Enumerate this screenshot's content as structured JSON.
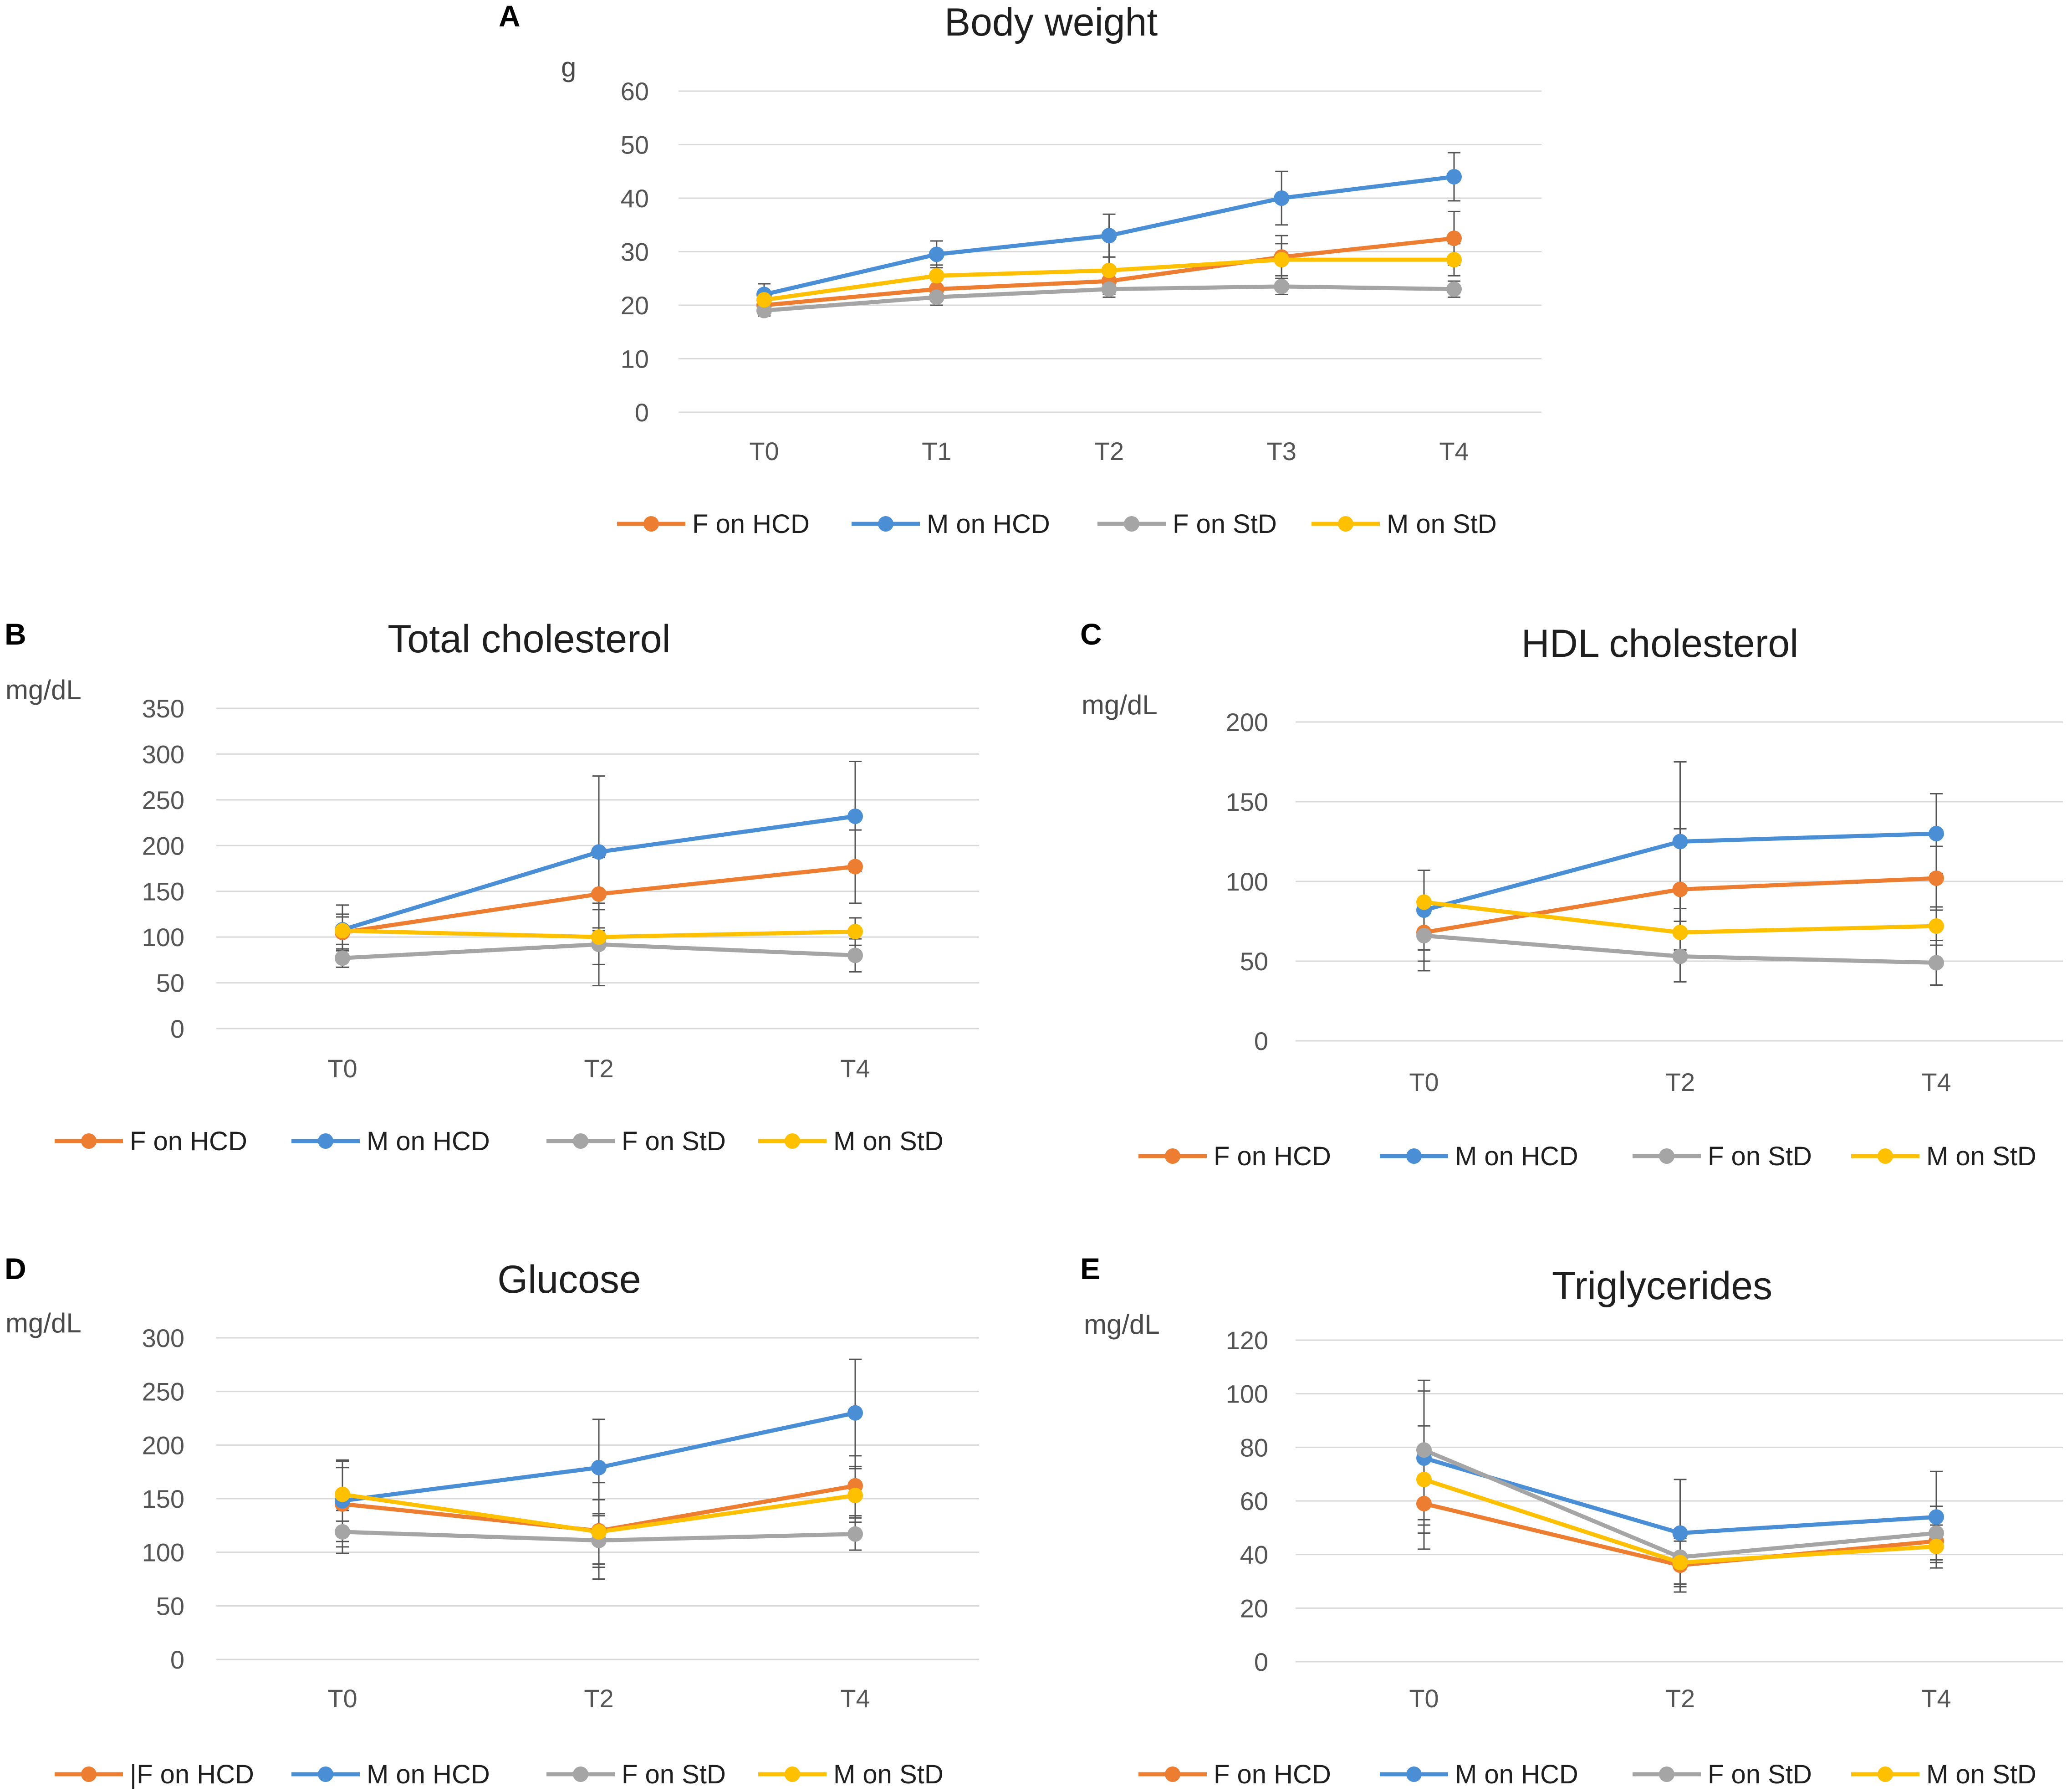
{
  "colors": {
    "f_hcd": "#ED7D31",
    "m_hcd": "#4A8FD6",
    "f_std": "#A5A5A5",
    "m_std": "#FFC000",
    "grid": "#D9D9D9",
    "errorbar": "#555555"
  },
  "chart_data": [
    {
      "id": "A",
      "type": "line",
      "panel_label": "A",
      "title": "Body weight",
      "ylabel": "g",
      "xlabel": "",
      "categories": [
        "T0",
        "T1",
        "T2",
        "T3",
        "T4"
      ],
      "ylim": [
        0,
        60
      ],
      "yticks": [
        0,
        10,
        20,
        30,
        40,
        50,
        60
      ],
      "grid": true,
      "legend_position": "bottom",
      "series": [
        {
          "name": "F on HCD",
          "color_key": "f_hcd",
          "values": [
            20,
            23,
            24.5,
            29,
            32.5
          ],
          "errors": [
            1.5,
            2,
            2.5,
            4,
            5
          ]
        },
        {
          "name": "M on HCD",
          "color_key": "m_hcd",
          "values": [
            22,
            29.5,
            33,
            40,
            44
          ],
          "errors": [
            2,
            2.5,
            4,
            5,
            4.5
          ]
        },
        {
          "name": "F on StD",
          "color_key": "f_std",
          "values": [
            19,
            21.5,
            23,
            23.5,
            23
          ],
          "errors": [
            1,
            1.5,
            1.5,
            1.5,
            1.5
          ]
        },
        {
          "name": "M on StD",
          "color_key": "m_std",
          "values": [
            21,
            25.5,
            26.5,
            28.5,
            28.5
          ],
          "errors": [
            1.5,
            2,
            2.5,
            3,
            3
          ]
        }
      ]
    },
    {
      "id": "B",
      "type": "line",
      "panel_label": "B",
      "title": "Total cholesterol",
      "ylabel": "mg/dL",
      "xlabel": "",
      "categories": [
        "T0",
        "T2",
        "T4"
      ],
      "ylim": [
        0,
        350
      ],
      "yticks": [
        0,
        50,
        100,
        150,
        200,
        250,
        300,
        350
      ],
      "grid": true,
      "legend_position": "bottom",
      "series": [
        {
          "name": "F on HCD",
          "color_key": "f_hcd",
          "values": [
            105,
            147,
            177
          ],
          "errors": [
            20,
            40,
            40
          ]
        },
        {
          "name": "M on HCD",
          "color_key": "m_hcd",
          "values": [
            108,
            193,
            232
          ],
          "errors": [
            27,
            83,
            60
          ]
        },
        {
          "name": "F on StD",
          "color_key": "f_std",
          "values": [
            77,
            92,
            80
          ],
          "errors": [
            10,
            45,
            18
          ]
        },
        {
          "name": "M on StD",
          "color_key": "m_std",
          "values": [
            107,
            100,
            106
          ],
          "errors": [
            15,
            30,
            15
          ]
        }
      ]
    },
    {
      "id": "C",
      "type": "line",
      "panel_label": "C",
      "title": "HDL cholesterol",
      "ylabel": "mg/dL",
      "xlabel": "",
      "categories": [
        "T0",
        "T2",
        "T4"
      ],
      "ylim": [
        0,
        200
      ],
      "yticks": [
        0,
        50,
        100,
        150,
        200
      ],
      "grid": true,
      "legend_position": "bottom",
      "series": [
        {
          "name": "F on HCD",
          "color_key": "f_hcd",
          "values": [
            68,
            95,
            102
          ],
          "errors": [
            18,
            38,
            20
          ]
        },
        {
          "name": "M on HCD",
          "color_key": "m_hcd",
          "values": [
            82,
            125,
            130
          ],
          "errors": [
            25,
            50,
            25
          ]
        },
        {
          "name": "F on StD",
          "color_key": "f_std",
          "values": [
            66,
            53,
            49
          ],
          "errors": [
            22,
            16,
            14
          ]
        },
        {
          "name": "M on StD",
          "color_key": "m_std",
          "values": [
            87,
            68,
            72
          ],
          "errors": [
            20,
            15,
            12
          ]
        }
      ]
    },
    {
      "id": "D",
      "type": "line",
      "panel_label": "D",
      "title": "Glucose",
      "ylabel": "mg/dL",
      "xlabel": "",
      "categories": [
        "T0",
        "T2",
        "T4"
      ],
      "ylim": [
        0,
        300
      ],
      "yticks": [
        0,
        50,
        100,
        150,
        200,
        250,
        300
      ],
      "grid": true,
      "legend_position": "bottom",
      "series": [
        {
          "name": "F on HCD",
          "color_key": "f_hcd",
          "legend_label": "|F on HCD",
          "values": [
            145,
            120,
            162
          ],
          "errors": [
            40,
            45,
            28
          ]
        },
        {
          "name": "M on HCD",
          "color_key": "m_hcd",
          "values": [
            148,
            179,
            230
          ],
          "errors": [
            38,
            45,
            50
          ]
        },
        {
          "name": "F on StD",
          "color_key": "f_std",
          "values": [
            119,
            111,
            117
          ],
          "errors": [
            20,
            25,
            15
          ]
        },
        {
          "name": "M on StD",
          "color_key": "m_std",
          "values": [
            154,
            119,
            153
          ],
          "errors": [
            25,
            30,
            25
          ]
        }
      ]
    },
    {
      "id": "E",
      "type": "line",
      "panel_label": "E",
      "title": "Triglycerides",
      "ylabel": "mg/dL",
      "xlabel": "",
      "categories": [
        "T0",
        "T2",
        "T4"
      ],
      "ylim": [
        0,
        120
      ],
      "yticks": [
        0,
        20,
        40,
        60,
        80,
        100,
        120
      ],
      "grid": true,
      "legend_position": "bottom",
      "series": [
        {
          "name": "F on HCD",
          "color_key": "f_hcd",
          "values": [
            59,
            36,
            45
          ],
          "errors": [
            17,
            10,
            8
          ]
        },
        {
          "name": "M on HCD",
          "color_key": "m_hcd",
          "values": [
            76,
            48,
            54
          ],
          "errors": [
            25,
            20,
            17
          ]
        },
        {
          "name": "F on StD",
          "color_key": "f_std",
          "values": [
            79,
            39,
            48
          ],
          "errors": [
            26,
            10,
            10
          ]
        },
        {
          "name": "M on StD",
          "color_key": "m_std",
          "values": [
            68,
            37,
            43
          ],
          "errors": [
            20,
            8,
            8
          ]
        }
      ]
    }
  ]
}
